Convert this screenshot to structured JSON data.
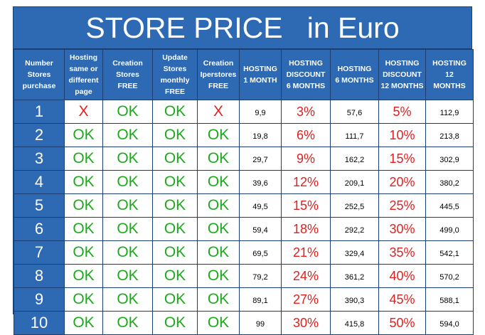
{
  "title": "STORE PRICE   in Euro",
  "headers": [
    [
      "Number",
      "Stores",
      "purchase"
    ],
    [
      "Hosting",
      "same or",
      "different",
      "page"
    ],
    [
      "Creation",
      "Stores",
      "FREE"
    ],
    [
      "Update",
      "Stores",
      "monthly",
      "FREE"
    ],
    [
      "Creation",
      "Iperstores",
      "FREE"
    ],
    [
      "HOSTING",
      "1 MONTH"
    ],
    [
      "HOSTING",
      "DISCOUNT",
      "6 MONTHS"
    ],
    [
      "HOSTING",
      "6 MONTHS"
    ],
    [
      "HOSTING",
      "DISCOUNT",
      "12 MONTHS"
    ],
    [
      "HOSTING",
      "12",
      "MONTHS"
    ]
  ],
  "rows": [
    [
      "1",
      "X",
      "OK",
      "OK",
      "X",
      "9,9",
      "3%",
      "57,6",
      "5%",
      "112,9"
    ],
    [
      "2",
      "OK",
      "OK",
      "OK",
      "OK",
      "19,8",
      "6%",
      "111,7",
      "10%",
      "213,8"
    ],
    [
      "3",
      "OK",
      "OK",
      "OK",
      "OK",
      "29,7",
      "9%",
      "162,2",
      "15%",
      "302,9"
    ],
    [
      "4",
      "OK",
      "OK",
      "OK",
      "OK",
      "39,6",
      "12%",
      "209,1",
      "20%",
      "380,2"
    ],
    [
      "5",
      "OK",
      "OK",
      "OK",
      "OK",
      "49,5",
      "15%",
      "252,5",
      "25%",
      "445,5"
    ],
    [
      "6",
      "OK",
      "OK",
      "OK",
      "OK",
      "59,4",
      "18%",
      "292,2",
      "30%",
      "499,0"
    ],
    [
      "7",
      "OK",
      "OK",
      "OK",
      "OK",
      "69,5",
      "21%",
      "329,4",
      "35%",
      "542,1"
    ],
    [
      "8",
      "OK",
      "OK",
      "OK",
      "OK",
      "79,2",
      "24%",
      "361,2",
      "40%",
      "570,2"
    ],
    [
      "9",
      "OK",
      "OK",
      "OK",
      "OK",
      "89,1",
      "27%",
      "390,3",
      "45%",
      "588,1"
    ],
    [
      "10",
      "OK",
      "OK",
      "OK",
      "OK",
      "99",
      "30%",
      "415,8",
      "50%",
      "594,0"
    ]
  ],
  "colors": {
    "header_bg": "#2e69b3",
    "ok_green": "#1aaa1a",
    "red": "#e02020"
  }
}
